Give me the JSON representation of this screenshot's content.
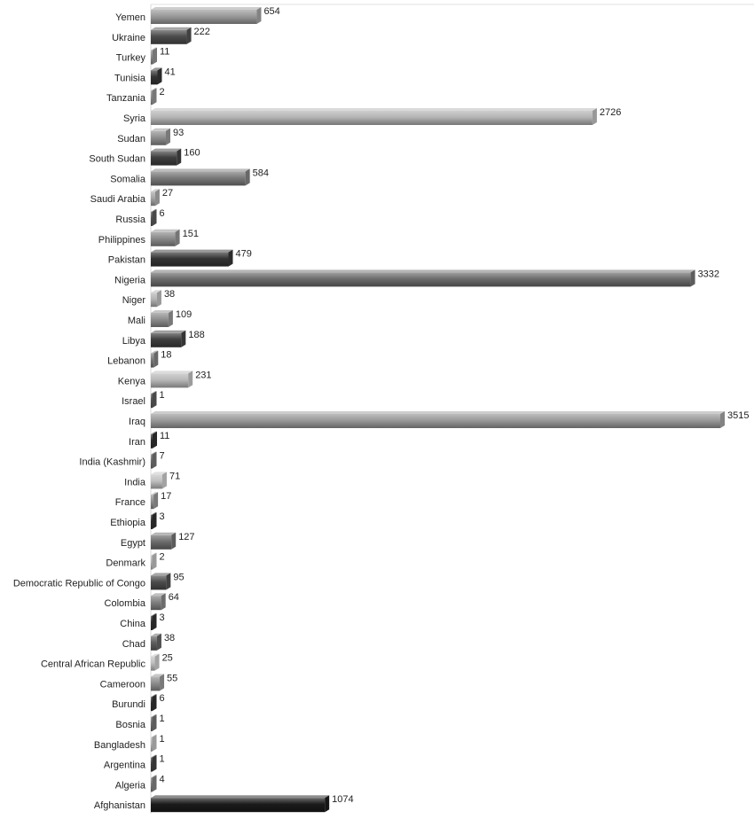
{
  "chart_data": {
    "type": "bar",
    "orientation": "horizontal",
    "style": "3d-grayscale",
    "title": "",
    "xlabel": "",
    "ylabel": "",
    "grid": false,
    "legend": "none",
    "xlim": [
      0,
      3515
    ],
    "categories": [
      "Yemen",
      "Ukraine",
      "Turkey",
      "Tunisia",
      "Tanzania",
      "Syria",
      "Sudan",
      "South Sudan",
      "Somalia",
      "Saudi Arabia",
      "Russia",
      "Philippines",
      "Pakistan",
      "Nigeria",
      "Niger",
      "Mali",
      "Libya",
      "Lebanon",
      "Kenya",
      "Israel",
      "Iraq",
      "Iran",
      "India (Kashmir)",
      "India",
      "France",
      "Ethiopia",
      "Egypt",
      "Denmark",
      "Democratic Republic of Congo",
      "Colombia",
      "China",
      "Chad",
      "Central African Republic",
      "Cameroon",
      "Burundi",
      "Bosnia",
      "Bangladesh",
      "Argentina",
      "Algeria",
      "Afghanistan"
    ],
    "values": [
      654,
      222,
      11,
      41,
      2,
      2726,
      93,
      160,
      584,
      27,
      6,
      151,
      479,
      3332,
      38,
      109,
      188,
      18,
      231,
      1,
      3515,
      11,
      7,
      71,
      17,
      3,
      127,
      2,
      95,
      64,
      3,
      38,
      25,
      55,
      6,
      1,
      1,
      1,
      4,
      1074
    ],
    "bar_colors": [
      "#9a9a9a",
      "#4c4c4c",
      "#8a8a8a",
      "#333333",
      "#8c8c8c",
      "#b4b4b4",
      "#8e8e8e",
      "#3e3e3e",
      "#7a7a7a",
      "#a4a4a4",
      "#555555",
      "#8a8a8a",
      "#333333",
      "#6c6c6c",
      "#b4b4b4",
      "#8e8e8e",
      "#3e3e3e",
      "#7a7a7a",
      "#b8b8b8",
      "#555555",
      "#9a9a9a",
      "#2e2e2e",
      "#6c6c6c",
      "#c0c0c0",
      "#8e8e8e",
      "#2e2e2e",
      "#6c6c6c",
      "#b4b4b4",
      "#4c4c4c",
      "#808080",
      "#2e2e2e",
      "#5e5e5e",
      "#c0c0c0",
      "#8e8e8e",
      "#2e2e2e",
      "#6c6c6c",
      "#b4b4b4",
      "#3e3e3e",
      "#7a7a7a",
      "#1a1a1a"
    ]
  }
}
